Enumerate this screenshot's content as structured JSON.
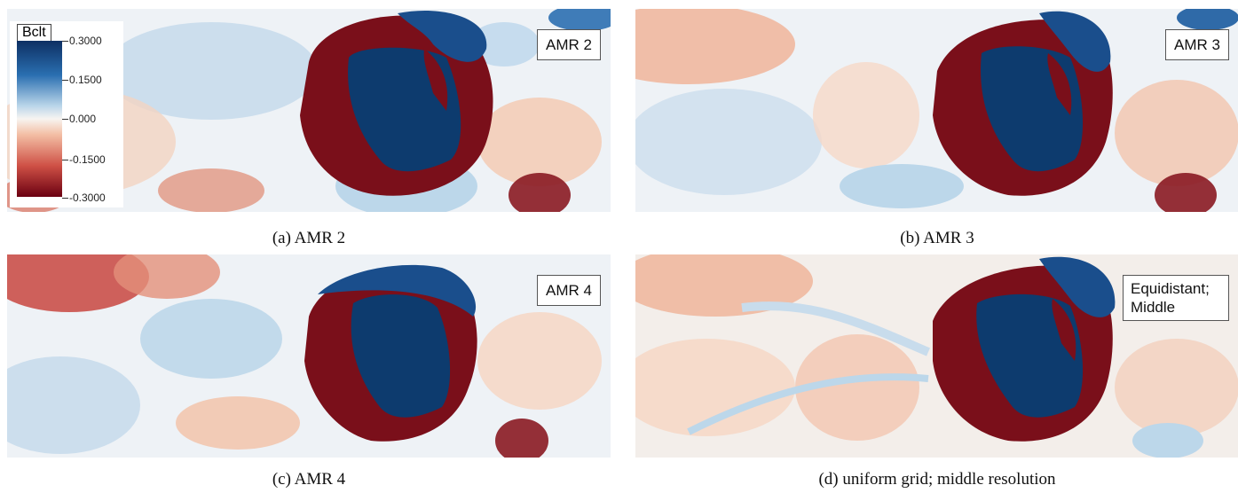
{
  "colorbar": {
    "title": "Bclt",
    "ticks": [
      "0.3000",
      "0.1500",
      "0.000",
      "-0.1500",
      "-0.3000"
    ]
  },
  "panels": [
    {
      "label": "AMR 2",
      "caption": "(a) AMR 2"
    },
    {
      "label": "AMR 3",
      "caption": "(b) AMR 3"
    },
    {
      "label": "AMR 4",
      "caption": "(c) AMR 4"
    },
    {
      "label": "Equidistant; Middle",
      "caption": "(d) uniform grid; middle resolution"
    }
  ],
  "colors": {
    "dark_blue": "#0d3b6e",
    "dark_red": "#7a0f1a",
    "light_blue": "#bcd7ea",
    "light_red": "#f2c0a6",
    "white": "#f7f4f1"
  }
}
